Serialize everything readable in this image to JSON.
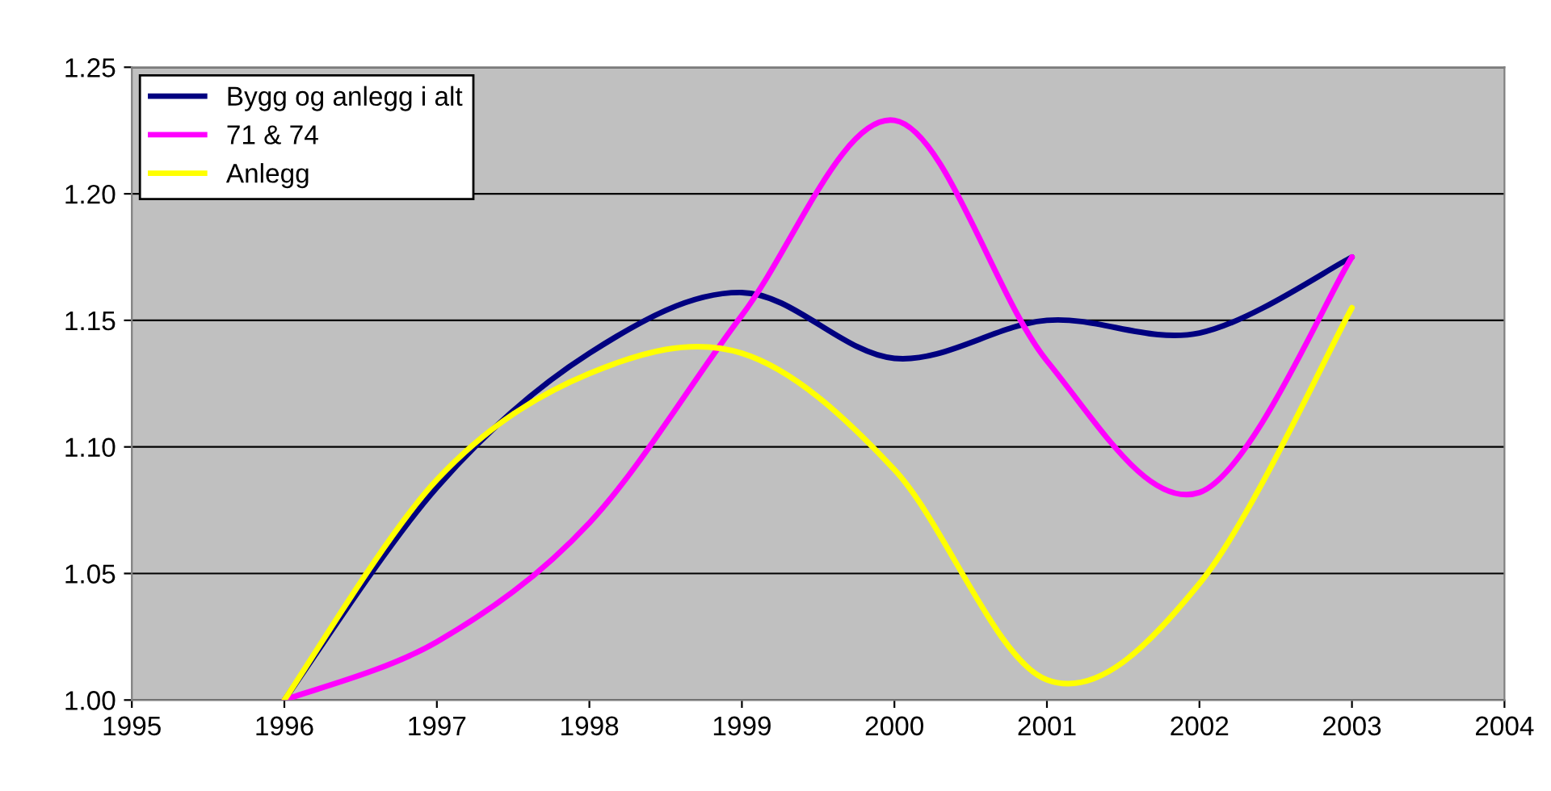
{
  "chart_data": {
    "type": "line",
    "x": [
      1996,
      1997,
      1998,
      1999,
      2000,
      2001,
      2002,
      2003
    ],
    "series": [
      {
        "name": "Bygg og anlegg i alt",
        "color": "#000080",
        "values": [
          1.0,
          1.084,
          1.137,
          1.161,
          1.135,
          1.15,
          1.145,
          1.175
        ]
      },
      {
        "name": "71 & 74",
        "color": "#ff00ff",
        "values": [
          1.0,
          1.023,
          1.07,
          1.152,
          1.229,
          1.134,
          1.082,
          1.175
        ]
      },
      {
        "name": "Anlegg",
        "color": "#ffff00",
        "values": [
          1.0,
          1.087,
          1.129,
          1.137,
          1.091,
          1.008,
          1.046,
          1.155
        ]
      }
    ],
    "xlim": [
      1995,
      2004
    ],
    "xticks": [
      1995,
      1996,
      1997,
      1998,
      1999,
      2000,
      2001,
      2002,
      2003,
      2004
    ],
    "ylim": [
      1.0,
      1.25
    ],
    "yticks": [
      {
        "value": 1.0,
        "label": "1.00"
      },
      {
        "value": 1.05,
        "label": "1.05"
      },
      {
        "value": 1.1,
        "label": "1.10"
      },
      {
        "value": 1.15,
        "label": "1.15"
      },
      {
        "value": 1.2,
        "label": "1.20"
      },
      {
        "value": 1.25,
        "label": "1.25"
      }
    ],
    "grid": "y",
    "legend": "top left",
    "marker": "none",
    "line_style": "solid"
  }
}
